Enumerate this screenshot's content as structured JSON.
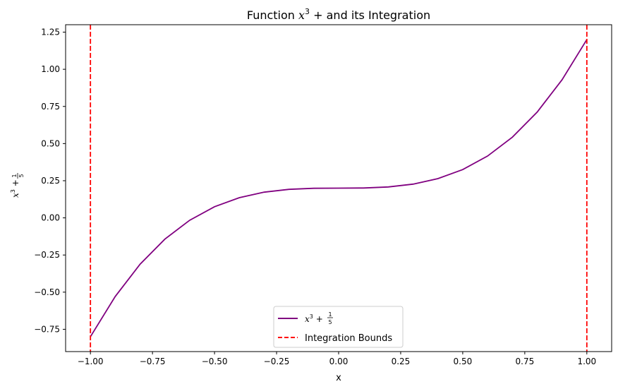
{
  "chart_data": {
    "type": "line",
    "title_prefix": "Function ",
    "title_x": "x",
    "title_exp": "3",
    "title_suffix": " +  and its Integration",
    "xlabel": "x",
    "ylabel_x": "x",
    "ylabel_exp": "3",
    "ylabel_plus": " + ",
    "ylabel_num": "1",
    "ylabel_den": "5",
    "xlim": [
      -1.1,
      1.1
    ],
    "ylim": [
      -0.9,
      1.3
    ],
    "xticks": [
      -1.0,
      -0.75,
      -0.5,
      -0.25,
      0.0,
      0.25,
      0.5,
      0.75,
      1.0
    ],
    "xtick_labels": [
      "−1.00",
      "−0.75",
      "−0.50",
      "−0.25",
      "0.00",
      "0.25",
      "0.50",
      "0.75",
      "1.00"
    ],
    "yticks": [
      -0.75,
      -0.5,
      -0.25,
      0.0,
      0.25,
      0.5,
      0.75,
      1.0,
      1.25
    ],
    "ytick_labels": [
      "−0.75",
      "−0.50",
      "−0.25",
      "0.00",
      "0.25",
      "0.50",
      "0.75",
      "1.00",
      "1.25"
    ],
    "grid": false,
    "series": [
      {
        "name_x": "x",
        "name_exp": "3",
        "name_plus": " + ",
        "name_num": "1",
        "name_den": "5",
        "color": "#800080",
        "style": "solid",
        "x": [
          -1.0,
          -0.9,
          -0.8,
          -0.7,
          -0.6,
          -0.5,
          -0.4,
          -0.3,
          -0.2,
          -0.1,
          0.0,
          0.1,
          0.2,
          0.3,
          0.4,
          0.5,
          0.6,
          0.7,
          0.8,
          0.9,
          1.0
        ],
        "y": [
          -0.8,
          -0.529,
          -0.312,
          -0.143,
          -0.016,
          0.075,
          0.136,
          0.173,
          0.192,
          0.199,
          0.2,
          0.201,
          0.208,
          0.227,
          0.264,
          0.325,
          0.416,
          0.543,
          0.712,
          0.929,
          1.2
        ]
      }
    ],
    "bounds": {
      "name": "Integration Bounds",
      "color": "#ff0000",
      "style": "dashed",
      "x": [
        -1.0,
        1.0
      ]
    },
    "legend_position": "lower-center"
  }
}
